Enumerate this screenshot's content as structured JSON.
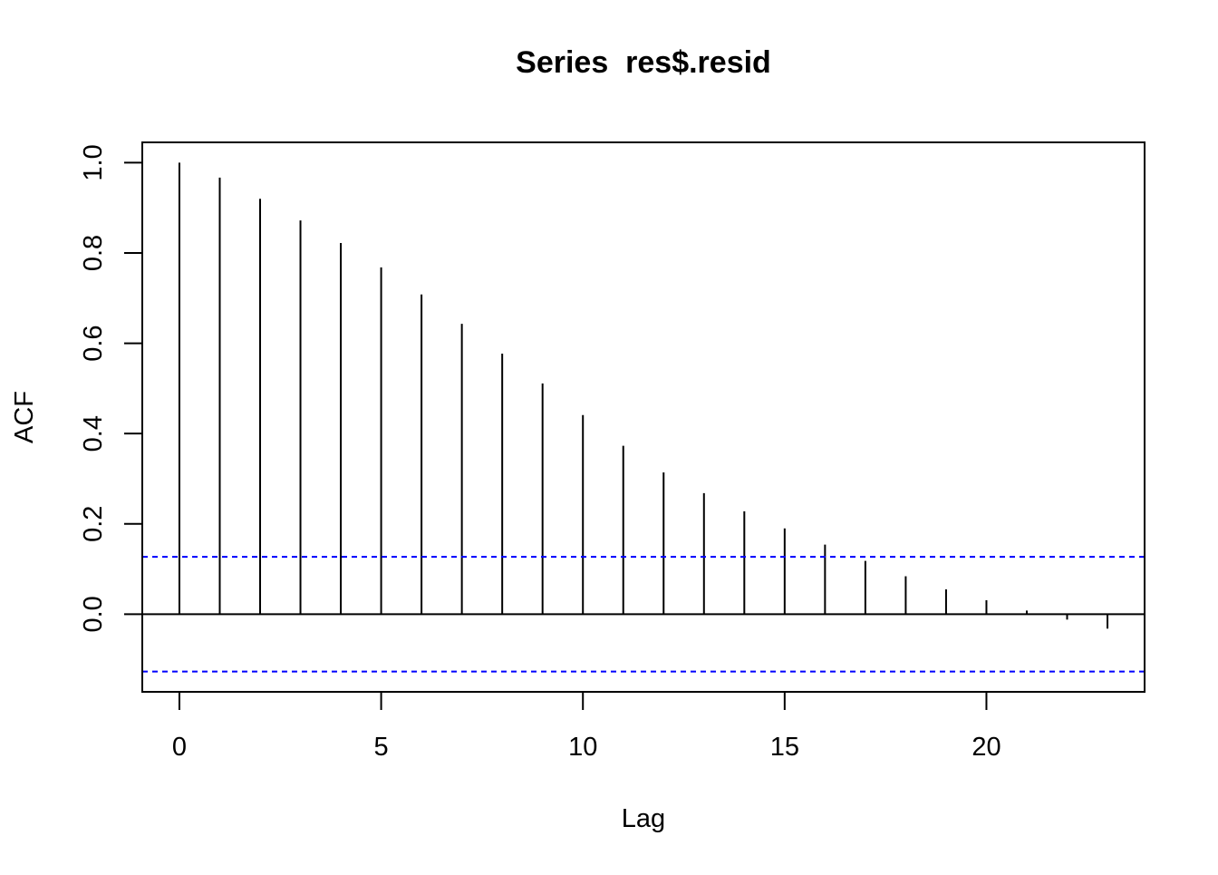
{
  "chart_data": {
    "type": "bar",
    "title": "Series  res$.resid",
    "xlabel": "Lag",
    "ylabel": "ACF",
    "x": [
      0,
      1,
      2,
      3,
      4,
      5,
      6,
      7,
      8,
      9,
      10,
      11,
      12,
      13,
      14,
      15,
      16,
      17,
      18,
      19,
      20,
      21,
      22,
      23
    ],
    "values": [
      1.0,
      0.967,
      0.92,
      0.872,
      0.822,
      0.768,
      0.708,
      0.643,
      0.577,
      0.511,
      0.441,
      0.373,
      0.314,
      0.268,
      0.228,
      0.19,
      0.154,
      0.118,
      0.084,
      0.055,
      0.031,
      0.008,
      -0.012,
      -0.032
    ],
    "xlim": [
      -0.92,
      23.92
    ],
    "ylim": [
      -0.172,
      1.045
    ],
    "x_ticks": [
      0,
      5,
      10,
      15,
      20
    ],
    "x_tick_labels": [
      "0",
      "5",
      "10",
      "15",
      "20"
    ],
    "y_ticks": [
      0.0,
      0.2,
      0.4,
      0.6,
      0.8,
      1.0
    ],
    "y_tick_labels": [
      "0.0",
      "0.2",
      "0.4",
      "0.6",
      "0.8",
      "1.0"
    ],
    "confidence_bound": 0.127,
    "confidence_color": "#0000FF",
    "bar_color": "#000000",
    "grid": false,
    "legend": "none"
  }
}
